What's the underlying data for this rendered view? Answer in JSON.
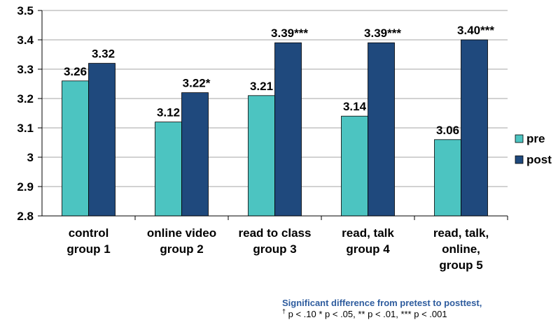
{
  "chart_data": {
    "type": "bar",
    "categories": [
      [
        "control",
        "group 1"
      ],
      [
        "online video",
        "group 2"
      ],
      [
        "read to class",
        "group 3"
      ],
      [
        "read, talk",
        "group 4"
      ],
      [
        "read, talk,",
        "online,",
        "group 5"
      ]
    ],
    "series": [
      {
        "name": "pre",
        "color": "#4cc4c1",
        "values": [
          3.26,
          3.12,
          3.21,
          3.14,
          3.06
        ],
        "labels": [
          "3.26",
          "3.12",
          "3.21",
          "3.14",
          "3.06"
        ]
      },
      {
        "name": "post",
        "color": "#1f497d",
        "values": [
          3.32,
          3.22,
          3.39,
          3.39,
          3.4
        ],
        "labels": [
          "3.32",
          "3.22*",
          "3.39***",
          "3.39***",
          "3.40***"
        ]
      }
    ],
    "ylim": [
      2.8,
      3.5
    ],
    "yticks": [
      "2.8",
      "2.9",
      "3",
      "3.1",
      "3.2",
      "3.3",
      "3.4",
      "3.5"
    ],
    "grid": true,
    "legend": "right",
    "title": "",
    "xlabel": "",
    "ylabel": ""
  },
  "footnote": {
    "title": "Significant difference from pretest to posttest,",
    "dagger": "†",
    "text": " p < .10 * p < .05, ** p < .01, *** p < .001"
  }
}
